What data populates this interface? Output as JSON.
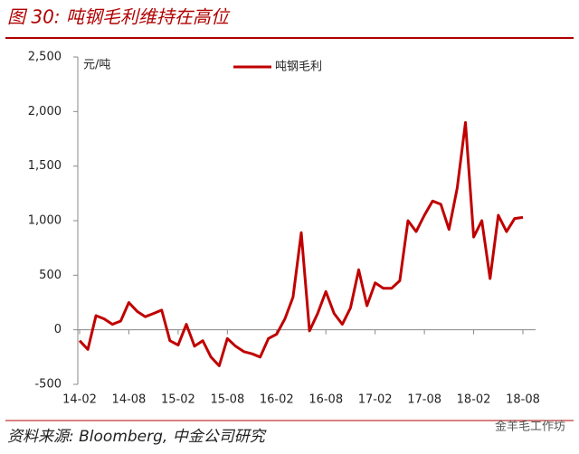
{
  "chart_data": {
    "type": "line",
    "title": "图 30: 吨钢毛利维持在高位",
    "y_label": "元/吨",
    "source": "资料来源: Bloomberg, 中金公司研究",
    "watermark": "金羊毛工作坊",
    "categories": [
      "14-02",
      null,
      null,
      null,
      null,
      null,
      "14-08",
      null,
      null,
      null,
      null,
      null,
      "15-02",
      null,
      null,
      null,
      null,
      null,
      "15-08",
      null,
      null,
      null,
      null,
      null,
      "16-02",
      null,
      null,
      null,
      null,
      null,
      "16-08",
      null,
      null,
      null,
      null,
      null,
      "17-02",
      null,
      null,
      null,
      null,
      null,
      "17-08",
      null,
      null,
      null,
      null,
      null,
      "18-02",
      null,
      null,
      null,
      null,
      null,
      "18-08"
    ],
    "series": [
      {
        "name": "吨钢毛利",
        "color": "#c00000",
        "values": [
          -100,
          -180,
          130,
          100,
          50,
          80,
          250,
          170,
          120,
          150,
          180,
          -100,
          -140,
          50,
          -150,
          -100,
          -250,
          -330,
          -80,
          -150,
          -200,
          -220,
          -250,
          -80,
          -40,
          100,
          300,
          890,
          -10,
          150,
          350,
          150,
          50,
          200,
          550,
          220,
          430,
          380,
          380,
          450,
          1000,
          900,
          1050,
          1180,
          1150,
          920,
          1300,
          1900,
          850,
          1000,
          470,
          1050,
          900,
          1020,
          1030
        ]
      }
    ],
    "ylim": [
      -500,
      2500
    ],
    "yticks": [
      -500,
      0,
      500,
      {
        "value": 1000,
        "label": "1,000"
      },
      {
        "value": 1500,
        "label": "1,500"
      },
      {
        "value": 2000,
        "label": "2,000"
      },
      {
        "value": 2500,
        "label": "2,500"
      }
    ],
    "legend": "top"
  }
}
